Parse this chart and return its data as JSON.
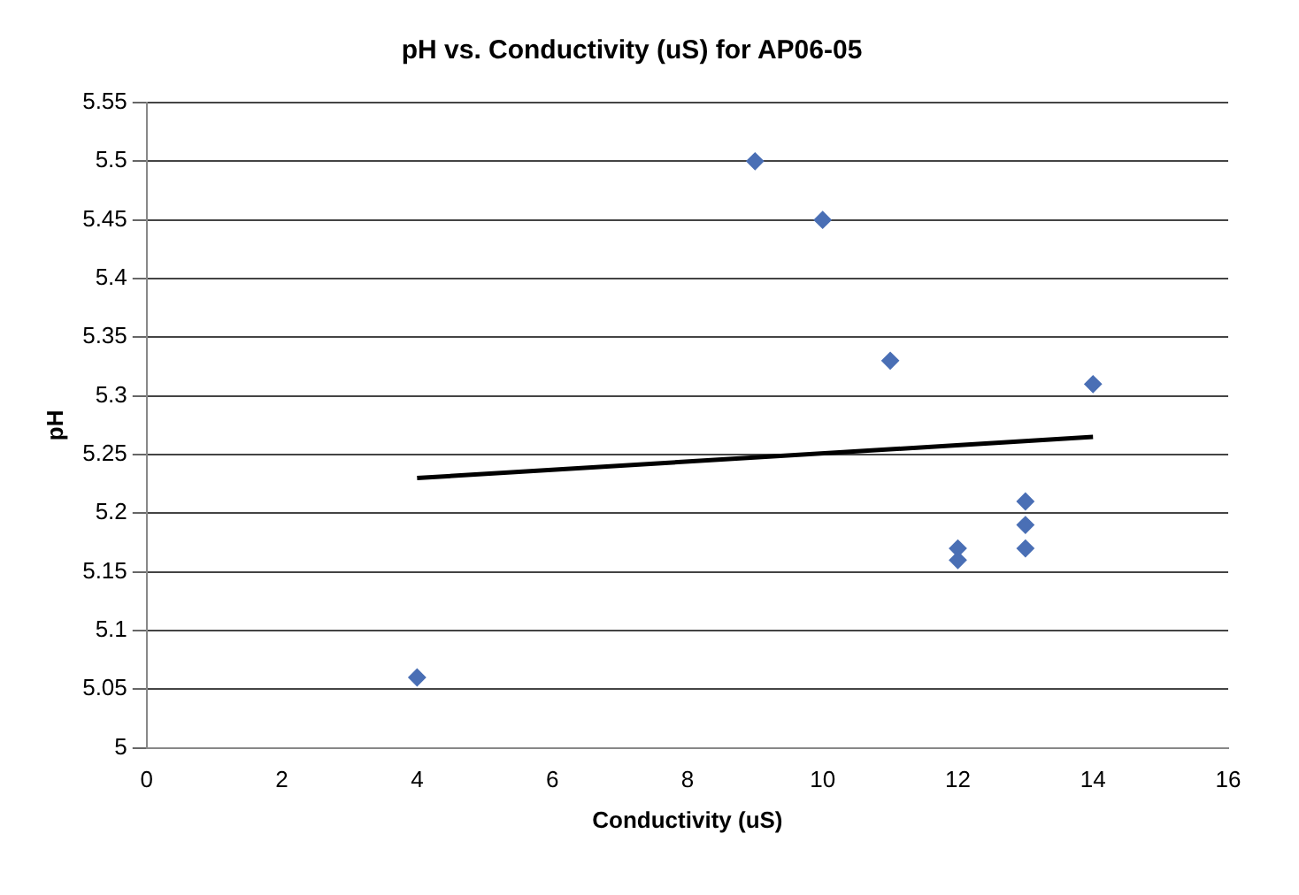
{
  "chart_data": {
    "type": "scatter",
    "title": "pH vs. Conductivity (uS) for AP06-05",
    "xlabel": "Conductivity (uS)",
    "ylabel": "pH",
    "xlim": [
      0,
      16
    ],
    "xticks": [
      0,
      2,
      4,
      6,
      8,
      10,
      12,
      14,
      16
    ],
    "ylim": [
      5,
      5.55
    ],
    "yticks": [
      5,
      5.05,
      5.1,
      5.15,
      5.2,
      5.25,
      5.3,
      5.35,
      5.4,
      5.45,
      5.5,
      5.55
    ],
    "grid": "y",
    "legend": false,
    "marker": "diamond",
    "series": [
      {
        "color": "#4a6fb5",
        "x": [
          4,
          9,
          10,
          11,
          12,
          12,
          13,
          13,
          13,
          14
        ],
        "values": [
          5.06,
          5.5,
          5.45,
          5.33,
          5.17,
          5.16,
          5.21,
          5.19,
          5.17,
          5.31
        ]
      },
      {
        "type": "line",
        "color": "#000000",
        "x": [
          4,
          14
        ],
        "values": [
          5.23,
          5.265
        ],
        "marker": "none",
        "line_style": "solid"
      }
    ]
  }
}
